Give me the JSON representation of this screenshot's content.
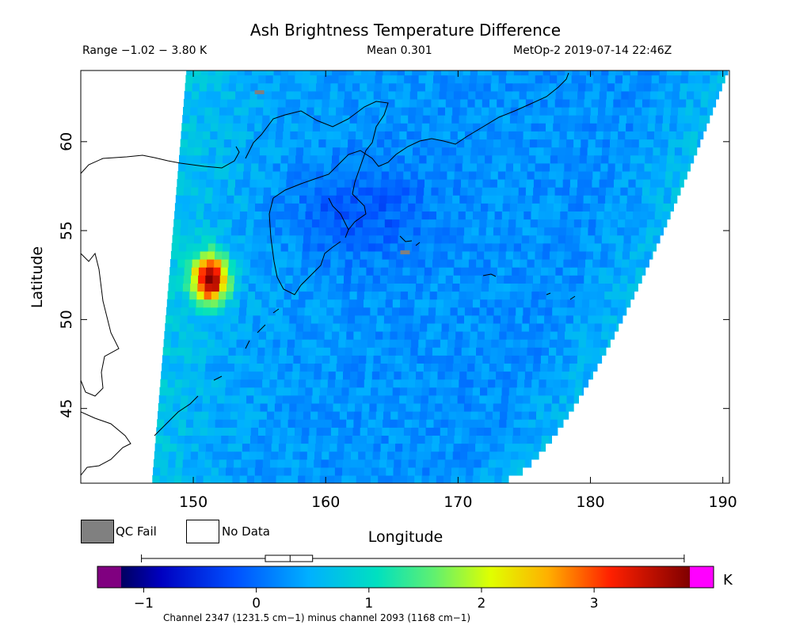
{
  "header": {
    "title": "Ash Brightness Temperature Difference",
    "range_text": "Range −1.02 − 3.80 K",
    "mean_text": "Mean 0.301",
    "platform_text": "MetOp-2 2019-07-14 22:46Z"
  },
  "legend": {
    "qc_fail_label": "QC Fail",
    "no_data_label": "No Data",
    "qc_fail_color": "#808080",
    "no_data_color": "#ffffff"
  },
  "colorbar": {
    "unit": "K",
    "ticks": [
      "−1",
      "0",
      "1",
      "2",
      "3"
    ],
    "tick_values": [
      -1,
      0,
      1,
      2,
      3
    ],
    "vmin": -1.2,
    "vmax": 3.85,
    "under_color": "#800080",
    "over_color": "#ff00ff",
    "caption": "Channel 2347 (1231.5 cm−1) minus channel 2093 (1168 cm−1)",
    "box_whisker": {
      "min": -1.02,
      "q1": 0.08,
      "median": 0.3,
      "q3": 0.5,
      "max": 3.8
    }
  },
  "chart_data": {
    "type": "heatmap",
    "title": "Ash Brightness Temperature Difference",
    "xlabel": "Longitude",
    "ylabel": "Latitude",
    "xlim": [
      141.5,
      190.5
    ],
    "ylim": [
      40.8,
      64.0
    ],
    "x_ticks": [
      "150",
      "160",
      "170",
      "180",
      "190"
    ],
    "x_tick_values": [
      150,
      160,
      170,
      180,
      190
    ],
    "y_ticks": [
      "45",
      "50",
      "55",
      "60"
    ],
    "y_tick_values": [
      45,
      50,
      55,
      60
    ],
    "value_range": [
      -1.02,
      3.8
    ],
    "mean": 0.301,
    "units": "K",
    "colormap": "rainbow",
    "swath": {
      "west_edge_lon_at_lat_min": 146.9,
      "west_edge_lon_at_lat_max": 149.5,
      "east_edge_lon_at_lat_min": 173.8,
      "east_edge_lon_at_lat_max": 190.5
    },
    "hotspot": {
      "lon": 151.0,
      "lat": 52.1,
      "peak_value": 3.8,
      "radius_deg": 1.3
    },
    "qc_fail_points": [
      {
        "lon": 155.0,
        "lat": 62.8
      },
      {
        "lon": 166.0,
        "lat": 53.8
      }
    ]
  }
}
